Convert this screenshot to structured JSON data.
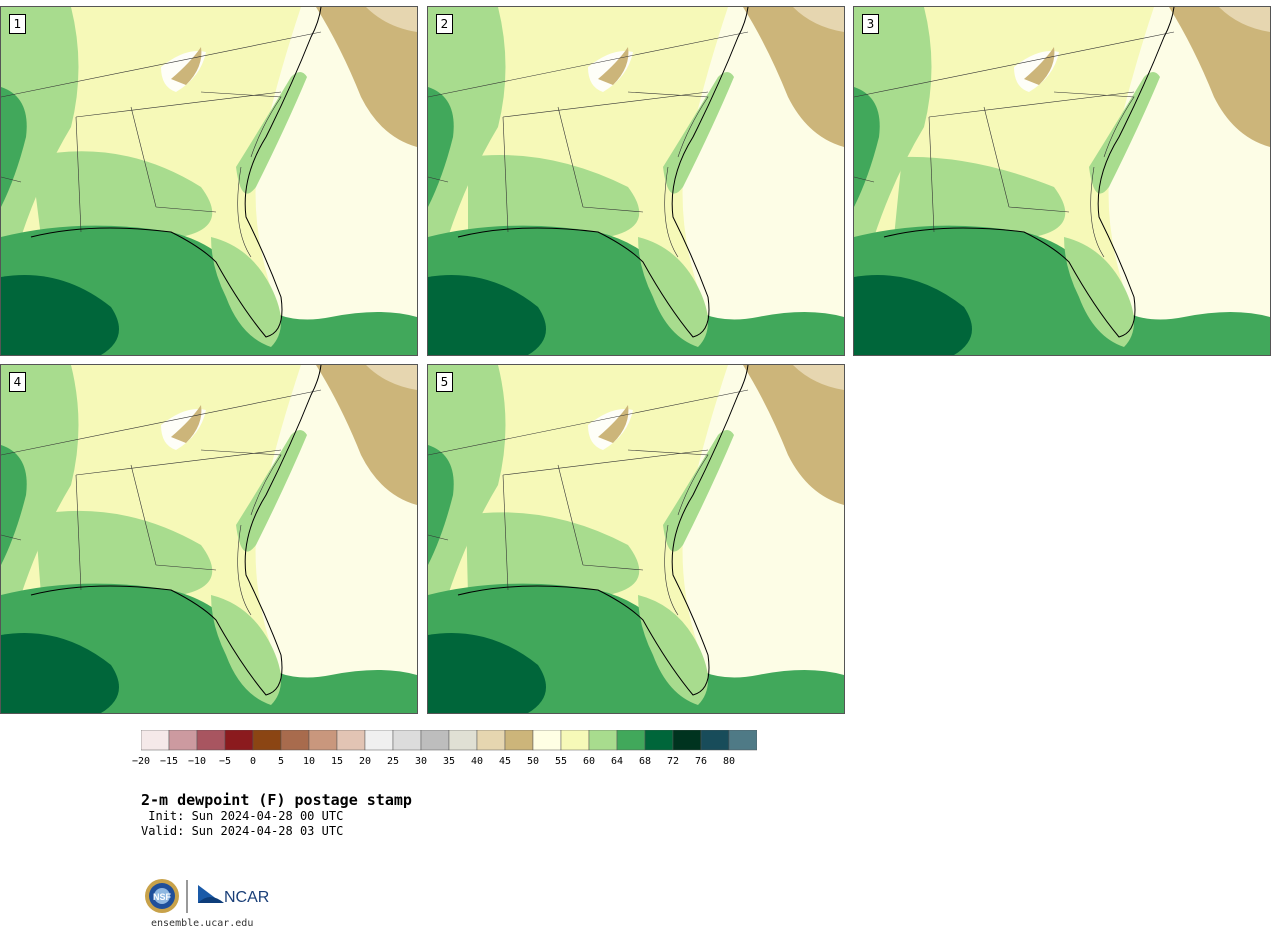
{
  "panels": [
    {
      "label": "1"
    },
    {
      "label": "2"
    },
    {
      "label": "3"
    },
    {
      "label": "4"
    },
    {
      "label": "5"
    }
  ],
  "colorbar": {
    "ticks": [
      "−20",
      "−15",
      "−10",
      "−5",
      "0",
      "5",
      "10",
      "15",
      "20",
      "25",
      "30",
      "35",
      "40",
      "45",
      "50",
      "55",
      "60",
      "64",
      "68",
      "72",
      "76",
      "80"
    ],
    "colors": [
      "#f5e9e9",
      "#cc9aa0",
      "#a85560",
      "#8b1a1e",
      "#8b4513",
      "#a86b4d",
      "#c9977d",
      "#e2c4b4",
      "#f0f0f0",
      "#dcdcdc",
      "#bdbdbd",
      "#e0e0d4",
      "#e6d6b0",
      "#ccb57a",
      "#ffffe4",
      "#f6f9b8",
      "#a8dc8e",
      "#41a85b",
      "#00663a",
      "#00331f",
      "#184c5a",
      "#4f7a86"
    ]
  },
  "title": "2-m dewpoint (F) postage stamp",
  "init_line": " Init: Sun 2024-04-28 00 UTC",
  "valid_line": "Valid: Sun 2024-04-28 03 UTC",
  "logo": {
    "nsf": "NSF",
    "ncar": "NCAR"
  },
  "site": "ensemble.ucar.edu"
}
